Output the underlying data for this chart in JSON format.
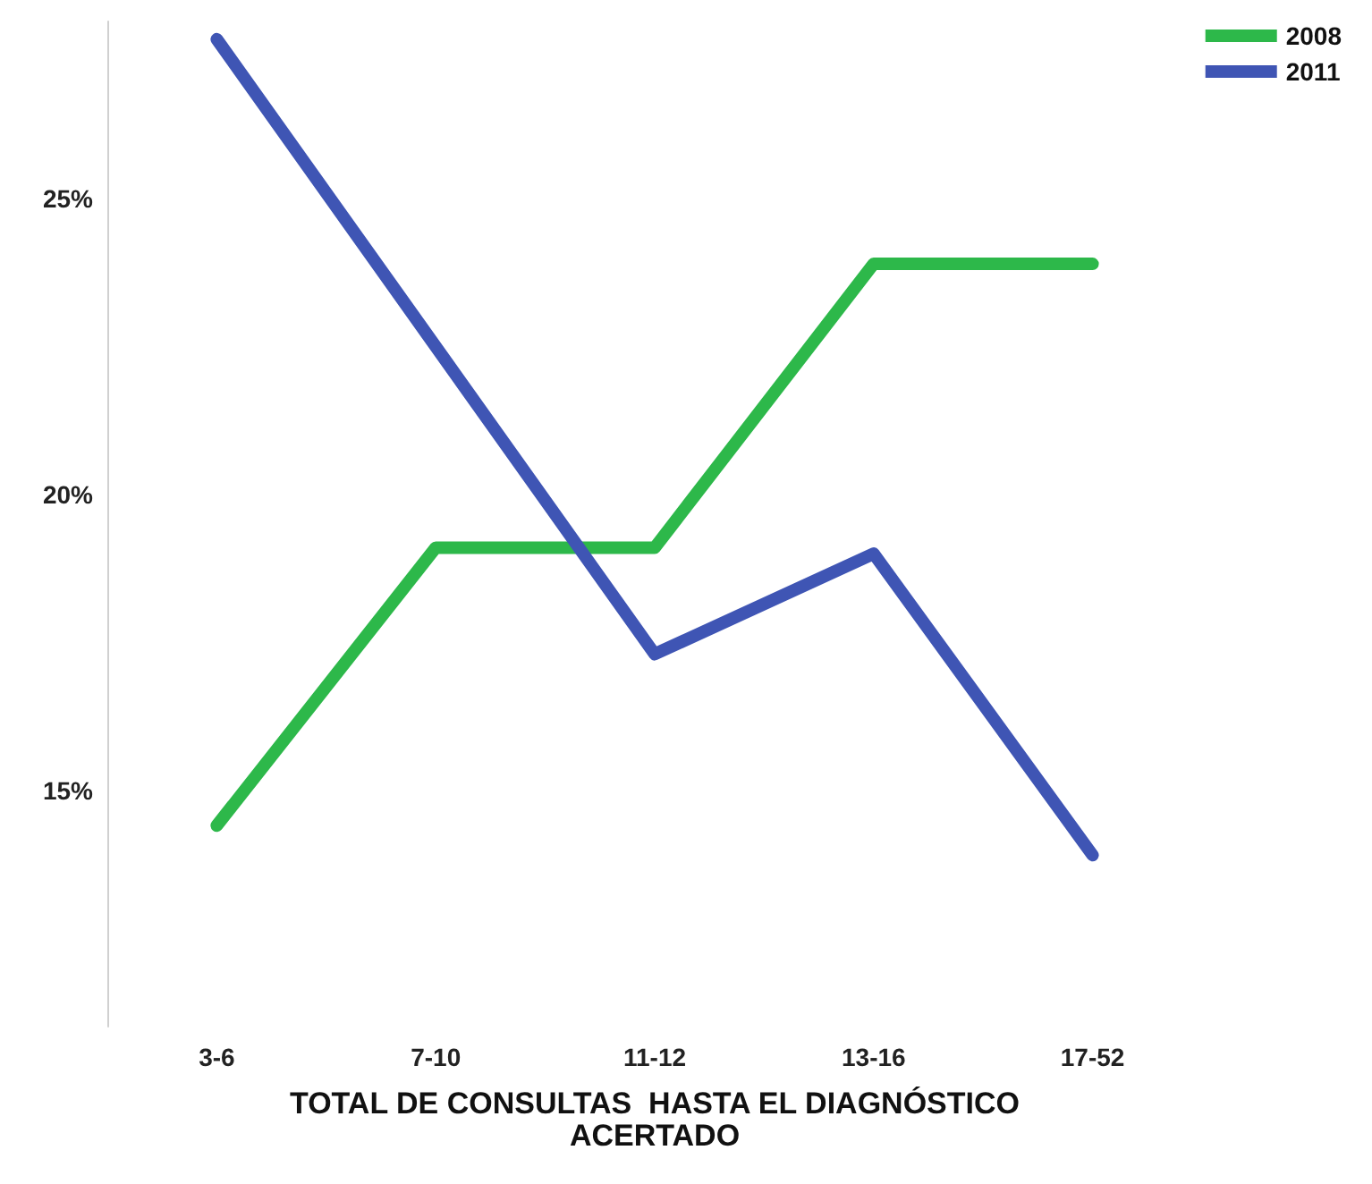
{
  "chart_data": {
    "type": "line",
    "xlabel": "TOTAL DE CONSULTAS  HASTA EL DIAGNÓSTICO\nACERTADO",
    "categories": [
      "3-6",
      "7-10",
      "11-12",
      "13-16",
      "17-52"
    ],
    "series": [
      {
        "name": "2008",
        "color": "#2db84a",
        "values": [
          14.4,
          19.1,
          19.1,
          23.9,
          23.9
        ]
      },
      {
        "name": "2011",
        "color": "#3f55b4",
        "values": [
          27.7,
          22.5,
          17.3,
          19.0,
          13.9
        ]
      }
    ],
    "ylim": [
      11,
      28
    ],
    "yticks": [
      {
        "value": 15,
        "label": "15%"
      },
      {
        "value": 20,
        "label": "20%"
      },
      {
        "value": 25,
        "label": "25%"
      }
    ],
    "grid": false,
    "legend": "top right",
    "line_style": "solid"
  }
}
